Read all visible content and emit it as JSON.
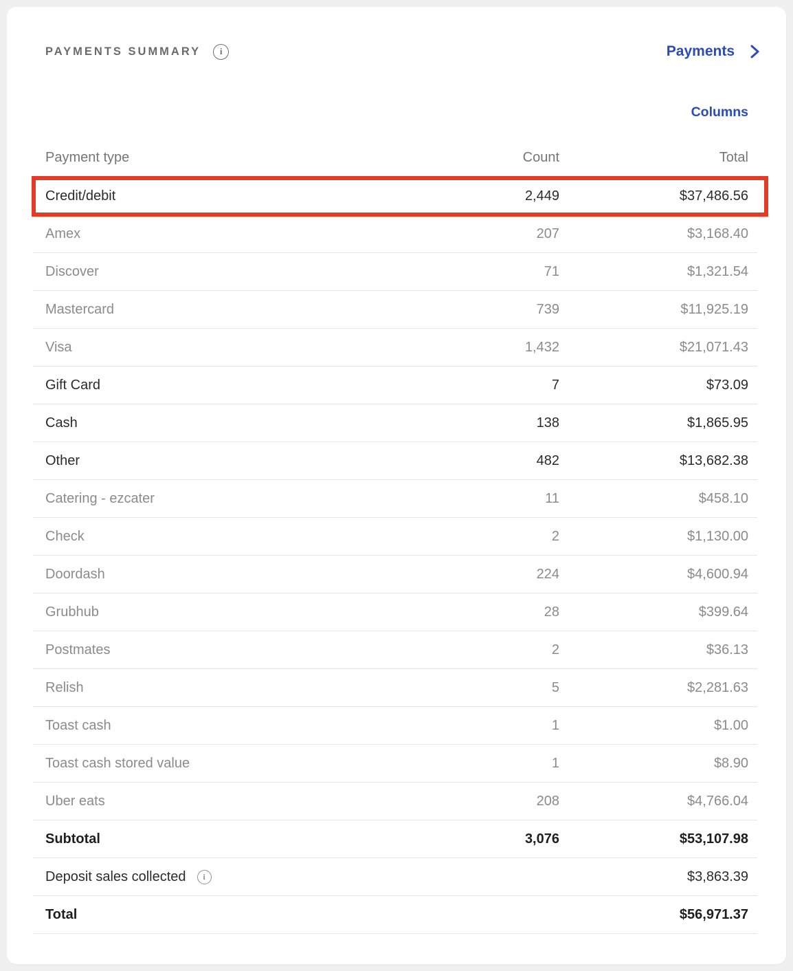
{
  "header": {
    "title": "PAYMENTS SUMMARY",
    "title_info_icon": "info-icon",
    "payments_link_label": "Payments",
    "payments_chevron_icon": "chevron-right-icon",
    "columns_label": "Columns"
  },
  "colors": {
    "accent_blue": "#2b4bb8",
    "highlight_red": "#e23c26",
    "card_background": "#ffffff",
    "page_background": "#f0f0f1"
  },
  "table": {
    "columns": [
      "Payment type",
      "Count",
      "Total"
    ],
    "rows": [
      {
        "label": "Credit/debit",
        "count": "2,449",
        "total": "$37,486.56",
        "style": "primary",
        "highlighted": true
      },
      {
        "label": "Amex",
        "count": "207",
        "total": "$3,168.40",
        "style": "secondary"
      },
      {
        "label": "Discover",
        "count": "71",
        "total": "$1,321.54",
        "style": "secondary"
      },
      {
        "label": "Mastercard",
        "count": "739",
        "total": "$11,925.19",
        "style": "secondary"
      },
      {
        "label": "Visa",
        "count": "1,432",
        "total": "$21,071.43",
        "style": "secondary"
      },
      {
        "label": "Gift Card",
        "count": "7",
        "total": "$73.09",
        "style": "primary"
      },
      {
        "label": "Cash",
        "count": "138",
        "total": "$1,865.95",
        "style": "primary"
      },
      {
        "label": "Other",
        "count": "482",
        "total": "$13,682.38",
        "style": "primary"
      },
      {
        "label": "Catering - ezcater",
        "count": "11",
        "total": "$458.10",
        "style": "secondary"
      },
      {
        "label": "Check",
        "count": "2",
        "total": "$1,130.00",
        "style": "secondary"
      },
      {
        "label": "Doordash",
        "count": "224",
        "total": "$4,600.94",
        "style": "secondary"
      },
      {
        "label": "Grubhub",
        "count": "28",
        "total": "$399.64",
        "style": "secondary"
      },
      {
        "label": "Postmates",
        "count": "2",
        "total": "$36.13",
        "style": "secondary"
      },
      {
        "label": "Relish",
        "count": "5",
        "total": "$2,281.63",
        "style": "secondary"
      },
      {
        "label": "Toast cash",
        "count": "1",
        "total": "$1.00",
        "style": "secondary"
      },
      {
        "label": "Toast cash stored value",
        "count": "1",
        "total": "$8.90",
        "style": "secondary"
      },
      {
        "label": "Uber eats",
        "count": "208",
        "total": "$4,766.04",
        "style": "secondary"
      },
      {
        "label": "Subtotal",
        "count": "3,076",
        "total": "$53,107.98",
        "style": "bold"
      },
      {
        "label": "Deposit sales collected",
        "count": "",
        "total": "$3,863.39",
        "style": "primary",
        "info": true,
        "info_icon": "info-icon"
      },
      {
        "label": "Total",
        "count": "",
        "total": "$56,971.37",
        "style": "bold"
      }
    ]
  }
}
